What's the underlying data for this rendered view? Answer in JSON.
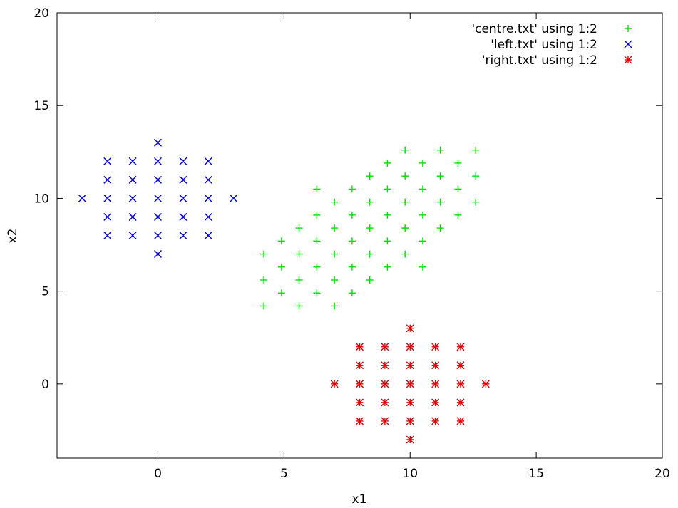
{
  "chart_data": {
    "type": "scatter",
    "title": "",
    "xlabel": "x1",
    "ylabel": "x2",
    "xlim": [
      -4,
      20
    ],
    "ylim": [
      -4,
      20
    ],
    "xticks": [
      0,
      5,
      10,
      15,
      20
    ],
    "yticks": [
      0,
      5,
      10,
      15,
      20
    ],
    "grid": false,
    "legend_position": "top-right",
    "series": [
      {
        "name": "'centre.txt' using 1:2",
        "marker": "plus",
        "color": "#00e000",
        "points": [
          [
            4.2,
            4.2
          ],
          [
            5.6,
            4.2
          ],
          [
            7.0,
            4.2
          ],
          [
            4.2,
            5.6
          ],
          [
            4.9,
            4.9
          ],
          [
            5.6,
            5.6
          ],
          [
            6.3,
            4.9
          ],
          [
            7.0,
            5.6
          ],
          [
            7.7,
            4.9
          ],
          [
            4.2,
            7.0
          ],
          [
            4.9,
            6.3
          ],
          [
            4.9,
            7.7
          ],
          [
            5.6,
            7.0
          ],
          [
            5.6,
            8.4
          ],
          [
            6.3,
            6.3
          ],
          [
            6.3,
            7.7
          ],
          [
            6.3,
            9.1
          ],
          [
            6.3,
            10.5
          ],
          [
            7.0,
            7.0
          ],
          [
            7.0,
            8.4
          ],
          [
            7.0,
            9.8
          ],
          [
            7.7,
            6.3
          ],
          [
            7.7,
            7.7
          ],
          [
            7.7,
            9.1
          ],
          [
            7.7,
            10.5
          ],
          [
            8.4,
            5.6
          ],
          [
            8.4,
            7.0
          ],
          [
            8.4,
            8.4
          ],
          [
            8.4,
            9.8
          ],
          [
            8.4,
            11.2
          ],
          [
            9.1,
            6.3
          ],
          [
            9.1,
            7.7
          ],
          [
            9.1,
            9.1
          ],
          [
            9.1,
            10.5
          ],
          [
            9.1,
            11.9
          ],
          [
            9.8,
            7.0
          ],
          [
            9.8,
            8.4
          ],
          [
            9.8,
            9.8
          ],
          [
            9.8,
            11.2
          ],
          [
            9.8,
            12.6
          ],
          [
            10.5,
            6.3
          ],
          [
            10.5,
            7.7
          ],
          [
            10.5,
            9.1
          ],
          [
            10.5,
            10.5
          ],
          [
            10.5,
            11.9
          ],
          [
            11.2,
            8.4
          ],
          [
            11.2,
            9.8
          ],
          [
            11.2,
            11.2
          ],
          [
            11.2,
            12.6
          ],
          [
            11.9,
            9.1
          ],
          [
            11.9,
            10.5
          ],
          [
            11.9,
            11.9
          ],
          [
            12.6,
            9.8
          ],
          [
            12.6,
            11.2
          ],
          [
            12.6,
            12.6
          ]
        ]
      },
      {
        "name": "'left.txt' using 1:2",
        "marker": "cross",
        "color": "#0000e0",
        "points": [
          [
            -3,
            10
          ],
          [
            3,
            10
          ],
          [
            0,
            13
          ],
          [
            0,
            7
          ],
          [
            -2,
            8
          ],
          [
            -2,
            9
          ],
          [
            -2,
            10
          ],
          [
            -2,
            11
          ],
          [
            -2,
            12
          ],
          [
            -1,
            8
          ],
          [
            -1,
            9
          ],
          [
            -1,
            10
          ],
          [
            -1,
            11
          ],
          [
            -1,
            12
          ],
          [
            0,
            8
          ],
          [
            0,
            9
          ],
          [
            0,
            10
          ],
          [
            0,
            11
          ],
          [
            0,
            12
          ],
          [
            1,
            8
          ],
          [
            1,
            9
          ],
          [
            1,
            10
          ],
          [
            1,
            11
          ],
          [
            1,
            12
          ],
          [
            2,
            8
          ],
          [
            2,
            9
          ],
          [
            2,
            10
          ],
          [
            2,
            11
          ],
          [
            2,
            12
          ]
        ]
      },
      {
        "name": "'right.txt' using 1:2",
        "marker": "star",
        "color": "#e00000",
        "points": [
          [
            7,
            0
          ],
          [
            13,
            0
          ],
          [
            10,
            3
          ],
          [
            10,
            -3
          ],
          [
            8,
            -2
          ],
          [
            8,
            -1
          ],
          [
            8,
            0
          ],
          [
            8,
            1
          ],
          [
            8,
            2
          ],
          [
            9,
            -2
          ],
          [
            9,
            -1
          ],
          [
            9,
            0
          ],
          [
            9,
            1
          ],
          [
            9,
            2
          ],
          [
            10,
            -2
          ],
          [
            10,
            -1
          ],
          [
            10,
            0
          ],
          [
            10,
            1
          ],
          [
            10,
            2
          ],
          [
            11,
            -2
          ],
          [
            11,
            -1
          ],
          [
            11,
            0
          ],
          [
            11,
            1
          ],
          [
            11,
            2
          ],
          [
            12,
            -2
          ],
          [
            12,
            -1
          ],
          [
            12,
            0
          ],
          [
            12,
            1
          ],
          [
            12,
            2
          ]
        ]
      }
    ]
  }
}
